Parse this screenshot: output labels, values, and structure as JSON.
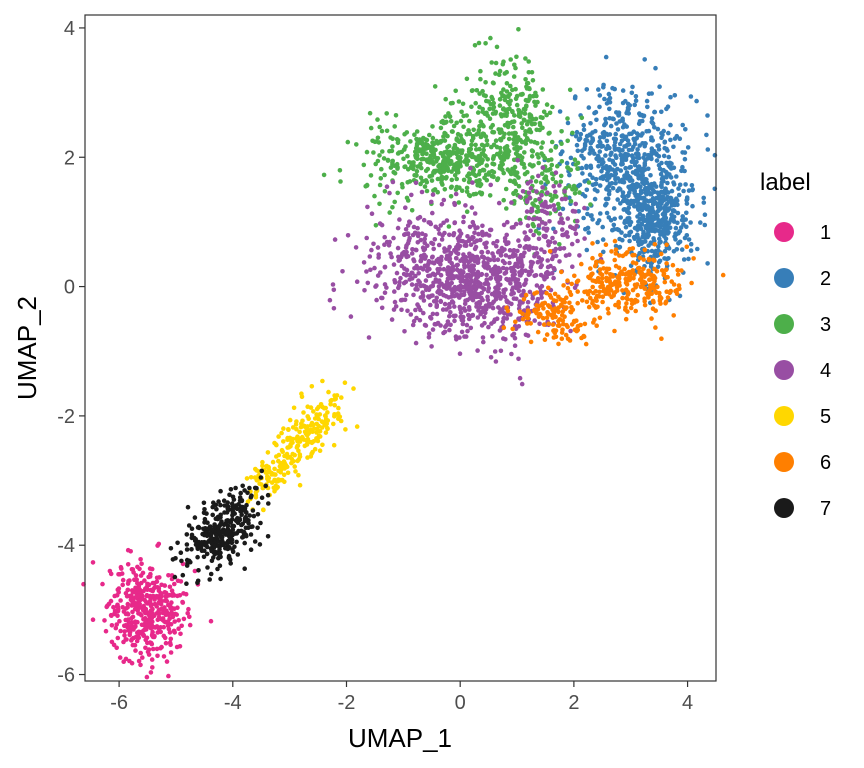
{
  "chart_data": {
    "type": "scatter",
    "xlabel": "UMAP_1",
    "ylabel": "UMAP_2",
    "xlim": [
      -6.6,
      4.5
    ],
    "ylim": [
      -6.1,
      4.2
    ],
    "xticks": [
      -6,
      -4,
      -2,
      0,
      2,
      4
    ],
    "yticks": [
      -6,
      -4,
      -2,
      0,
      2,
      4
    ],
    "grid": false,
    "legend": {
      "title": "label",
      "position": "right"
    },
    "series": [
      {
        "name": "1",
        "color": "#E7298A",
        "approx_points": 420,
        "regions": [
          {
            "cx": -5.55,
            "cy": -5.0,
            "sx": 0.35,
            "sy": 0.35,
            "angle": 40,
            "w": 1
          }
        ]
      },
      {
        "name": "2",
        "color": "#377EB8",
        "approx_points": 950,
        "regions": [
          {
            "cx": 2.95,
            "cy": 1.9,
            "sx": 0.55,
            "sy": 0.6,
            "angle": 0,
            "w": 0.65
          },
          {
            "cx": 3.45,
            "cy": 1.0,
            "sx": 0.3,
            "sy": 0.45,
            "angle": 0,
            "w": 0.35
          }
        ]
      },
      {
        "name": "3",
        "color": "#4DAF4A",
        "approx_points": 850,
        "regions": [
          {
            "cx": -0.2,
            "cy": 1.95,
            "sx": 0.75,
            "sy": 0.32,
            "angle": 0,
            "w": 0.55
          },
          {
            "cx": 0.8,
            "cy": 2.7,
            "sx": 0.45,
            "sy": 0.45,
            "angle": 0,
            "w": 0.3
          },
          {
            "cx": 1.4,
            "cy": 1.6,
            "sx": 0.35,
            "sy": 0.45,
            "angle": 0,
            "w": 0.15
          }
        ]
      },
      {
        "name": "4",
        "color": "#984EA3",
        "approx_points": 1050,
        "regions": [
          {
            "cx": -0.4,
            "cy": 0.3,
            "sx": 0.65,
            "sy": 0.45,
            "angle": 0,
            "w": 0.45
          },
          {
            "cx": 0.5,
            "cy": -0.1,
            "sx": 0.6,
            "sy": 0.45,
            "angle": 0,
            "w": 0.4
          },
          {
            "cx": 1.5,
            "cy": 0.8,
            "sx": 0.35,
            "sy": 0.45,
            "angle": 0,
            "w": 0.15
          }
        ]
      },
      {
        "name": "5",
        "color": "#FFD700",
        "approx_points": 260,
        "regions": [
          {
            "cx": -2.6,
            "cy": -2.2,
            "sx": 0.45,
            "sy": 0.18,
            "angle": 45,
            "w": 0.6
          },
          {
            "cx": -3.3,
            "cy": -2.9,
            "sx": 0.3,
            "sy": 0.15,
            "angle": 45,
            "w": 0.4
          }
        ]
      },
      {
        "name": "6",
        "color": "#FF7F00",
        "approx_points": 420,
        "regions": [
          {
            "cx": 2.9,
            "cy": 0.05,
            "sx": 0.5,
            "sy": 0.25,
            "angle": 0,
            "w": 0.7
          },
          {
            "cx": 1.7,
            "cy": -0.45,
            "sx": 0.35,
            "sy": 0.2,
            "angle": 0,
            "w": 0.3
          }
        ]
      },
      {
        "name": "7",
        "color": "#1A1A1A",
        "approx_points": 330,
        "regions": [
          {
            "cx": -4.2,
            "cy": -3.75,
            "sx": 0.4,
            "sy": 0.22,
            "angle": 40,
            "w": 1
          }
        ]
      }
    ]
  }
}
